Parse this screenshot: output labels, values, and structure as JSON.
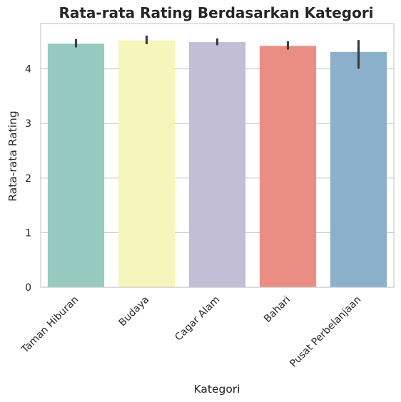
{
  "chart_data": {
    "type": "bar",
    "title": "Rata-rata Rating Berdasarkan Kategori",
    "xlabel": "Kategori",
    "ylabel": "Rata-rata Rating",
    "categories": [
      "Taman Hiburan",
      "Budaya",
      "Cagar Alam",
      "Bahari",
      "Pusat Perbelanjaan"
    ],
    "values": [
      4.46,
      4.52,
      4.49,
      4.42,
      4.31
    ],
    "error_low": [
      4.41,
      4.47,
      4.45,
      4.37,
      4.02
    ],
    "error_high": [
      4.53,
      4.59,
      4.54,
      4.49,
      4.51
    ],
    "colors": [
      "#96cac1",
      "#f6f6bc",
      "#c1bed6",
      "#ea8e83",
      "#8ab0cb"
    ],
    "ylim": [
      0,
      4.83
    ],
    "yticks": [
      0,
      1,
      2,
      3,
      4
    ],
    "grid": true,
    "legend": "none"
  }
}
